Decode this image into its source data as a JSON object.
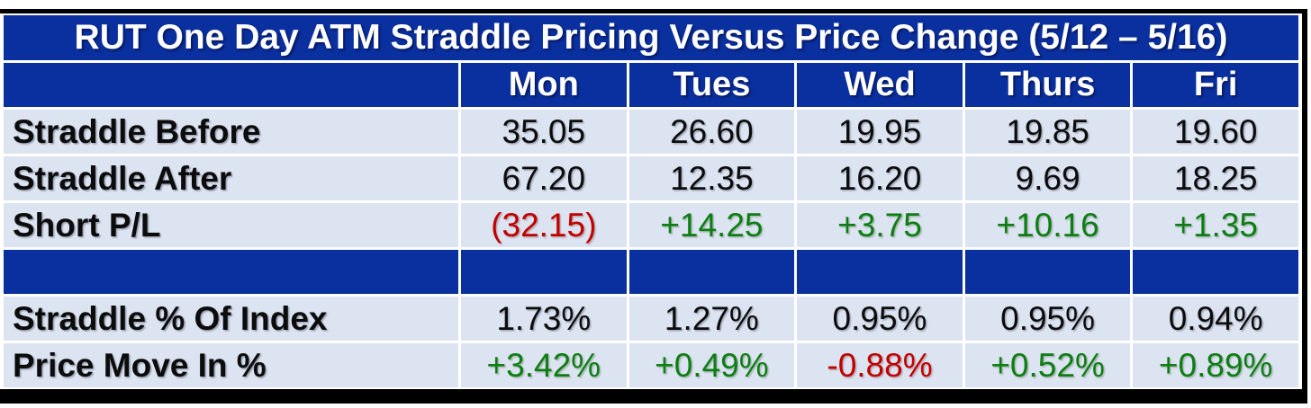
{
  "chart_data": {
    "type": "table",
    "title": "RUT One Day ATM Straddle Pricing Versus Price Change (5/12 – 5/16)",
    "columns": [
      "Mon",
      "Tues",
      "Wed",
      "Thurs",
      "Fri"
    ],
    "rows": [
      {
        "label": "Straddle Before",
        "values": [
          35.05,
          26.6,
          19.95,
          19.85,
          19.6
        ]
      },
      {
        "label": "Straddle After",
        "values": [
          67.2,
          12.35,
          16.2,
          9.69,
          18.25
        ]
      },
      {
        "label": "Short P/L",
        "values": [
          -32.15,
          14.25,
          3.75,
          10.16,
          1.35
        ]
      },
      {
        "label": "Straddle % Of Index",
        "values": [
          1.73,
          1.27,
          0.95,
          0.95,
          0.94
        ],
        "unit": "%"
      },
      {
        "label": "Price Move In %",
        "values": [
          3.42,
          0.49,
          -0.88,
          0.52,
          0.89
        ],
        "unit": "%"
      }
    ]
  },
  "table": {
    "title": "RUT One Day ATM Straddle Pricing Versus Price Change (5/12 – 5/16)",
    "columns": [
      "Mon",
      "Tues",
      "Wed",
      "Thurs",
      "Fri"
    ],
    "rows": [
      {
        "label": "Straddle Before",
        "cells": [
          {
            "text": "35.05",
            "tone": "neutral"
          },
          {
            "text": "26.60",
            "tone": "neutral"
          },
          {
            "text": "19.95",
            "tone": "neutral"
          },
          {
            "text": "19.85",
            "tone": "neutral"
          },
          {
            "text": "19.60",
            "tone": "neutral"
          }
        ]
      },
      {
        "label": "Straddle After",
        "cells": [
          {
            "text": "67.20",
            "tone": "neutral"
          },
          {
            "text": "12.35",
            "tone": "neutral"
          },
          {
            "text": "16.20",
            "tone": "neutral"
          },
          {
            "text": "9.69",
            "tone": "neutral"
          },
          {
            "text": "18.25",
            "tone": "neutral"
          }
        ]
      },
      {
        "label": "Short P/L",
        "cells": [
          {
            "text": "(32.15)",
            "tone": "negative"
          },
          {
            "text": "+14.25",
            "tone": "positive"
          },
          {
            "text": "+3.75",
            "tone": "positive"
          },
          {
            "text": "+10.16",
            "tone": "positive"
          },
          {
            "text": "+1.35",
            "tone": "positive"
          }
        ]
      },
      {
        "label": "",
        "spacer": true,
        "cells": []
      },
      {
        "label": "Straddle % Of Index",
        "cells": [
          {
            "text": "1.73%",
            "tone": "neutral"
          },
          {
            "text": "1.27%",
            "tone": "neutral"
          },
          {
            "text": "0.95%",
            "tone": "neutral"
          },
          {
            "text": "0.95%",
            "tone": "neutral"
          },
          {
            "text": "0.94%",
            "tone": "neutral"
          }
        ]
      },
      {
        "label": "Price Move In %",
        "cells": [
          {
            "text": "+3.42%",
            "tone": "positive"
          },
          {
            "text": "+0.49%",
            "tone": "positive"
          },
          {
            "text": "-0.88%",
            "tone": "negative"
          },
          {
            "text": "+0.52%",
            "tone": "positive"
          },
          {
            "text": "+0.89%",
            "tone": "positive"
          }
        ]
      }
    ]
  },
  "colors": {
    "header_blue": "#0a2f9e",
    "row_light": "#dce3f1",
    "positive_green": "#0e7d13",
    "negative_red": "#c00000",
    "ink": "#0c0c0c",
    "border_black": "#000000",
    "gridline_white": "#ffffff"
  }
}
